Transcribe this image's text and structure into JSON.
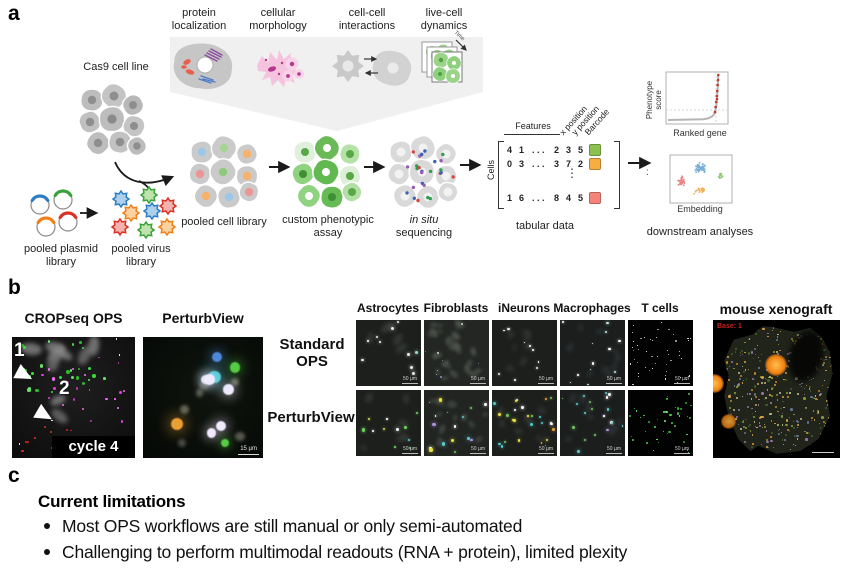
{
  "panel_labels": {
    "a": "a",
    "b": "b",
    "c": "c"
  },
  "workflow": {
    "modalities": [
      "protein localization",
      "cellular morphology",
      "cell-cell interactions",
      "live-cell dynamics"
    ],
    "time_label": "Time",
    "cas9_label": "Cas9 cell line",
    "plasmid_label": "pooled plasmid library",
    "virus_label": "pooled virus library",
    "cell_library_label": "pooled cell library",
    "assay_label": "custom phenotypic assay",
    "insitu_line1": "in situ",
    "insitu_line2": "sequencing",
    "matrix": {
      "row_axis_label": "Cells",
      "features_label": "Features",
      "rotated_labels": [
        "x position",
        "y position",
        "Barcode"
      ],
      "rows": [
        {
          "cols": [
            "4",
            "1",
            ". . .",
            "2",
            "3",
            "5"
          ]
        },
        {
          "cols": [
            "0",
            "3",
            ". . .",
            "3",
            "7",
            "2"
          ]
        },
        {
          "cols": [
            "1",
            "6",
            ". . .",
            "8",
            "4",
            "5"
          ]
        }
      ],
      "barcode_colors": [
        "#8cc152",
        "#f6ad42",
        "#f4837a"
      ],
      "ellipsis": "⋮",
      "caption": "tabular data"
    },
    "between_plots_colon": ":",
    "ranked_plot": {
      "ylabel": "Phenotype score",
      "xlabel": "Ranked gene"
    },
    "embedding_caption": "Embedding",
    "downstream_label": "downstream analyses"
  },
  "panel_b": {
    "cropseq_title": "CROPseq OPS",
    "perturbview_title": "PerturbView",
    "cropseq": {
      "num1": "1",
      "num2": "2",
      "cycle_label": "cycle 4"
    },
    "perturbview_scale": "15 µm",
    "grid": {
      "columns": [
        "Astrocytes",
        "Fibroblasts",
        "iNeurons",
        "Macrophages",
        "T cells"
      ],
      "row_labels": [
        "Standard OPS",
        "PerturbView"
      ],
      "tile_scale": "50 µm"
    },
    "xenograft": {
      "title": "mouse xenograft",
      "base_label": "Base: 1"
    }
  },
  "limitations": {
    "heading": "Current limitations",
    "bullets": [
      "Most OPS workflows are still manual or only semi-automated",
      "Challenging to perform multimodal readouts (RNA + protein), limited plexity"
    ]
  }
}
